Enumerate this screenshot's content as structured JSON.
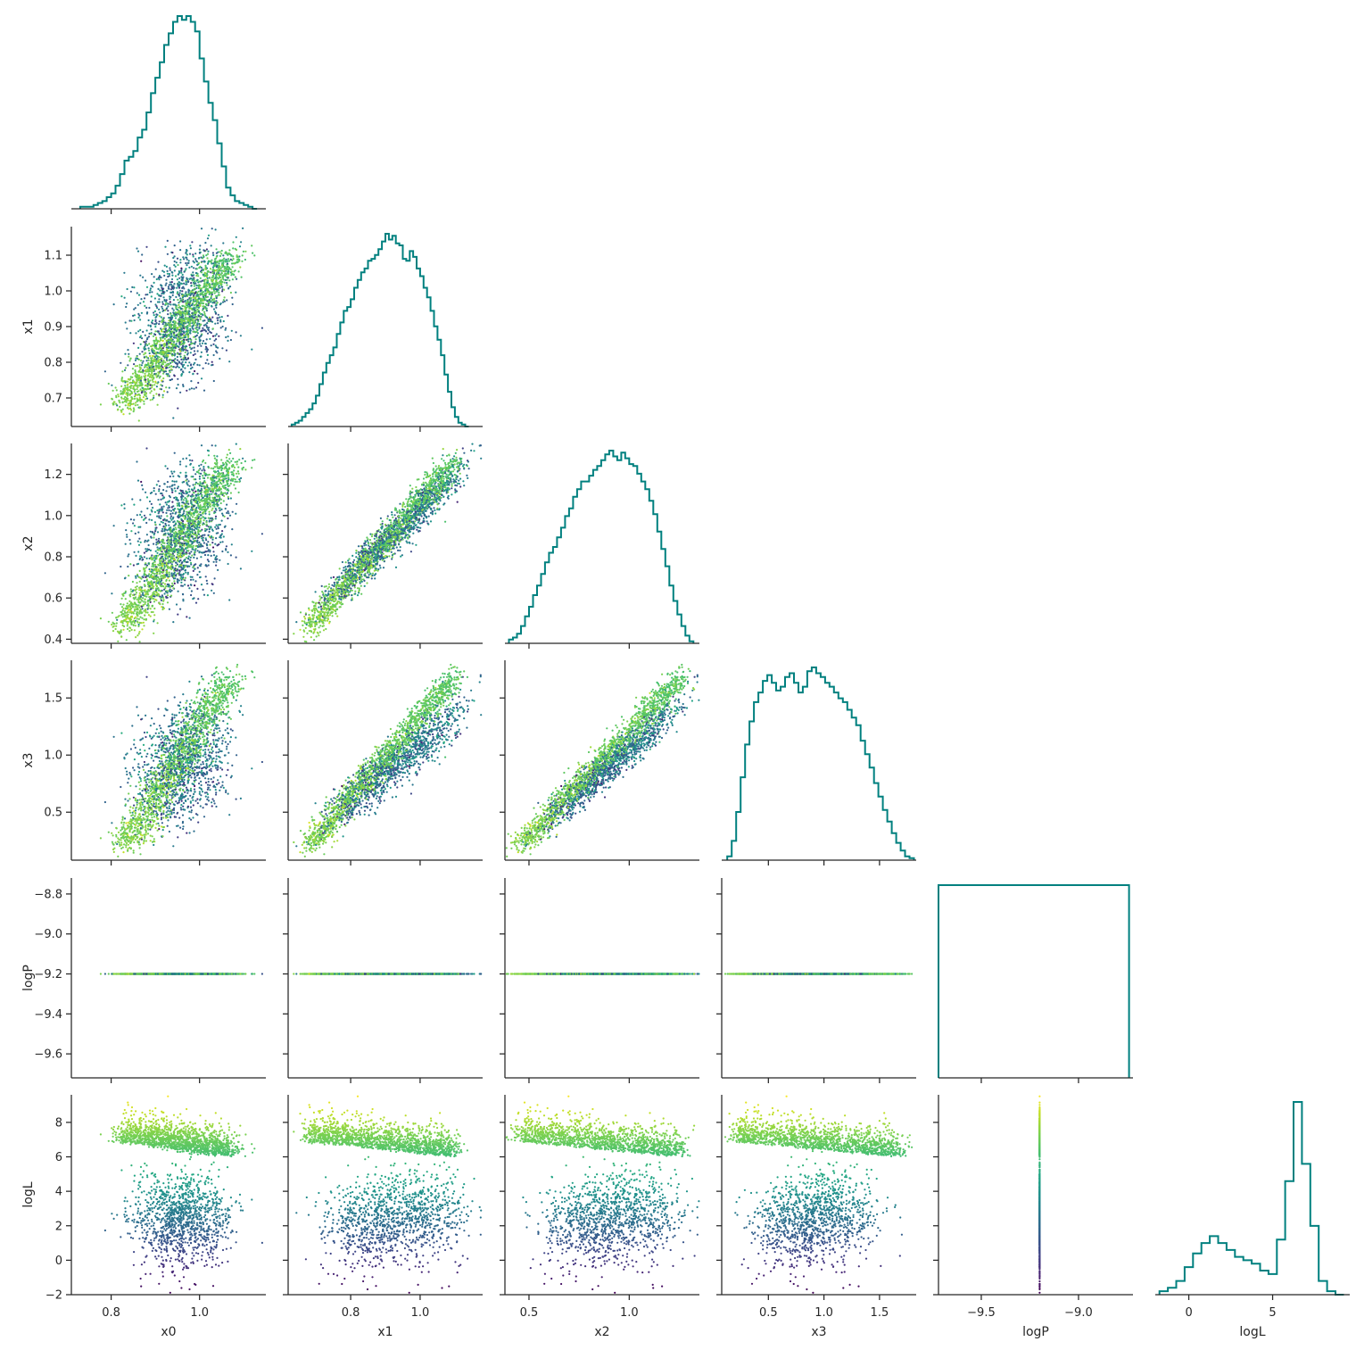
{
  "chart_data": {
    "type": "scatter",
    "subtype": "corner-plot",
    "parameters": [
      "x0",
      "x1",
      "x2",
      "x3",
      "logP",
      "logL"
    ],
    "color_by": "logL",
    "colormap": "viridis",
    "hist_color": "#00807f",
    "axis_color": "#262626",
    "ranges": {
      "x0": [
        0.71,
        1.15
      ],
      "x1": [
        0.62,
        1.18
      ],
      "x2": [
        0.38,
        1.35
      ],
      "x3": [
        0.08,
        1.83
      ],
      "logP": [
        -9.72,
        -8.72
      ],
      "logL": [
        -2.0,
        9.6
      ]
    },
    "ticks": {
      "x0": [
        0.8,
        1.0
      ],
      "x1": [
        0.7,
        0.8,
        0.9,
        1.0,
        1.1
      ],
      "x1_bottom": [
        0.8,
        1.0
      ],
      "x2": [
        0.4,
        0.6,
        0.8,
        1.0,
        1.2
      ],
      "x2_bottom": [
        0.5,
        1.0
      ],
      "x3": [
        0.5,
        1.0,
        1.5
      ],
      "logP": [
        -9.6,
        -9.4,
        -9.2,
        -9.0,
        -8.8
      ],
      "logP_bottom": [
        -9.5,
        -9.0
      ],
      "logL": [
        -2,
        0,
        2,
        4,
        6,
        8
      ],
      "logL_bottom": [
        0,
        5
      ]
    },
    "tick_labels": {
      "x0": [
        "0.8",
        "1.0"
      ],
      "x1": [
        "0.7",
        "0.8",
        "0.9",
        "1.0",
        "1.1"
      ],
      "x1_bottom": [
        "0.8",
        "1.0"
      ],
      "x2": [
        "0.4",
        "0.6",
        "0.8",
        "1.0",
        "1.2"
      ],
      "x2_bottom": [
        "0.5",
        "1.0"
      ],
      "x3": [
        "0.5",
        "1.0",
        "1.5"
      ],
      "logP": [
        "−9.6",
        "−9.4",
        "−9.2",
        "−9.0",
        "−8.8"
      ],
      "logP_bottom": [
        "−9.5",
        "−9.0"
      ],
      "logL": [
        "−2",
        "0",
        "2",
        "4",
        "6",
        "8"
      ],
      "logL_bottom": [
        "0",
        "5"
      ]
    },
    "histograms": {
      "x0": {
        "x": [
          0.73,
          0.74,
          0.75,
          0.76,
          0.77,
          0.78,
          0.79,
          0.8,
          0.81,
          0.82,
          0.83,
          0.84,
          0.85,
          0.86,
          0.87,
          0.88,
          0.89,
          0.9,
          0.91,
          0.92,
          0.93,
          0.94,
          0.95,
          0.96,
          0.97,
          0.98,
          0.99,
          1.0,
          1.01,
          1.02,
          1.03,
          1.04,
          1.05,
          1.06,
          1.07,
          1.08,
          1.09,
          1.1,
          1.11,
          1.12
        ],
        "counts": [
          1,
          1,
          1,
          2,
          3,
          4,
          6,
          8,
          12,
          18,
          25,
          27,
          30,
          37,
          41,
          50,
          60,
          68,
          76,
          85,
          91,
          97,
          100,
          98,
          100,
          97,
          92,
          78,
          66,
          55,
          46,
          34,
          22,
          11,
          7,
          4,
          3,
          2,
          1,
          0
        ]
      },
      "x1": {
        "x": [
          0.63,
          0.64,
          0.65,
          0.66,
          0.67,
          0.68,
          0.69,
          0.7,
          0.71,
          0.72,
          0.73,
          0.74,
          0.75,
          0.76,
          0.77,
          0.78,
          0.79,
          0.8,
          0.81,
          0.82,
          0.83,
          0.84,
          0.85,
          0.86,
          0.87,
          0.88,
          0.89,
          0.9,
          0.91,
          0.92,
          0.93,
          0.94,
          0.95,
          0.96,
          0.97,
          0.98,
          0.99,
          1.0,
          1.01,
          1.02,
          1.03,
          1.04,
          1.05,
          1.06,
          1.07,
          1.08,
          1.09,
          1.1,
          1.11,
          1.12,
          1.13
        ],
        "counts": [
          1,
          2,
          3,
          5,
          7,
          9,
          12,
          16,
          22,
          28,
          33,
          37,
          41,
          48,
          54,
          60,
          62,
          66,
          72,
          76,
          80,
          82,
          86,
          87,
          89,
          92,
          96,
          100,
          97,
          99,
          95,
          94,
          87,
          86,
          91,
          88,
          82,
          78,
          72,
          67,
          60,
          52,
          45,
          37,
          27,
          18,
          10,
          5,
          2,
          1,
          0
        ]
      },
      "x2": {
        "x": [
          0.4,
          0.42,
          0.44,
          0.46,
          0.48,
          0.5,
          0.52,
          0.54,
          0.56,
          0.58,
          0.6,
          0.62,
          0.64,
          0.66,
          0.68,
          0.7,
          0.72,
          0.74,
          0.76,
          0.78,
          0.8,
          0.82,
          0.84,
          0.86,
          0.88,
          0.9,
          0.92,
          0.94,
          0.96,
          0.98,
          1.0,
          1.02,
          1.04,
          1.06,
          1.08,
          1.1,
          1.12,
          1.14,
          1.16,
          1.18,
          1.2,
          1.22,
          1.24,
          1.26,
          1.28,
          1.3
        ],
        "counts": [
          2,
          3,
          5,
          9,
          14,
          19,
          25,
          30,
          36,
          42,
          47,
          50,
          55,
          60,
          66,
          70,
          76,
          80,
          84,
          84,
          87,
          90,
          92,
          95,
          98,
          100,
          97,
          95,
          99,
          96,
          93,
          92,
          88,
          84,
          80,
          74,
          67,
          58,
          49,
          40,
          30,
          22,
          15,
          9,
          4,
          1
        ]
      },
      "x3": {
        "x": [
          0.13,
          0.17,
          0.21,
          0.25,
          0.29,
          0.33,
          0.37,
          0.41,
          0.45,
          0.49,
          0.53,
          0.57,
          0.61,
          0.65,
          0.69,
          0.73,
          0.77,
          0.81,
          0.85,
          0.89,
          0.93,
          0.97,
          1.01,
          1.05,
          1.09,
          1.13,
          1.17,
          1.21,
          1.25,
          1.29,
          1.33,
          1.37,
          1.41,
          1.45,
          1.49,
          1.53,
          1.57,
          1.61,
          1.65,
          1.69,
          1.73,
          1.77
        ],
        "counts": [
          2,
          10,
          25,
          43,
          60,
          72,
          82,
          87,
          93,
          96,
          92,
          88,
          90,
          95,
          97,
          92,
          87,
          90,
          98,
          100,
          97,
          95,
          92,
          90,
          87,
          84,
          82,
          78,
          74,
          70,
          62,
          55,
          48,
          40,
          33,
          26,
          20,
          14,
          9,
          5,
          2,
          1
        ]
      },
      "logP": {
        "x": [
          -9.72,
          -8.74
        ],
        "counts": [
          100
        ]
      },
      "logL": {
        "x": [
          -1.75,
          -1.25,
          -0.75,
          -0.25,
          0.25,
          0.75,
          1.25,
          1.75,
          2.25,
          2.75,
          3.25,
          3.75,
          4.25,
          4.75,
          5.25,
          5.75,
          6.25,
          6.75,
          7.25,
          7.75,
          8.25,
          8.75
        ],
        "counts": [
          1,
          2,
          4,
          8,
          12,
          15,
          17,
          15,
          13,
          11,
          10,
          9,
          7,
          6,
          16,
          33,
          56,
          38,
          20,
          4,
          1,
          0
        ]
      }
    },
    "scatter_structure": {
      "ellipse_cluster_logL_low": {
        "center_x0": 0.97,
        "center_logL": 1.8
      },
      "ring_cluster_logL_high": {
        "logL_band": [
          5.5,
          8.0
        ]
      },
      "logP_constant_value": -9.2
    }
  }
}
